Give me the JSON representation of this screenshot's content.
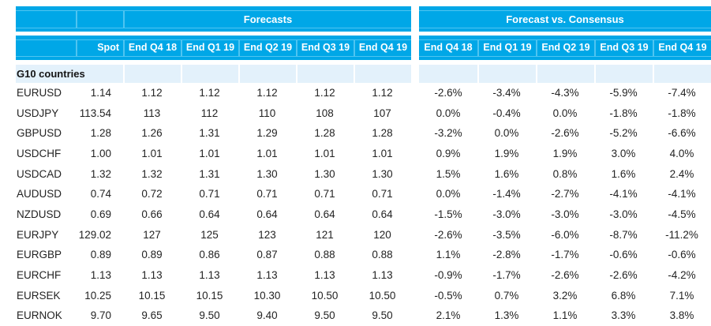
{
  "header": {
    "groups": [
      {
        "label": "Forecasts"
      },
      {
        "label": "Forecast vs. Consensus"
      }
    ],
    "spot_label": "Spot",
    "forecast_cols": [
      "End Q4 18",
      "End Q1 19",
      "End Q2 19",
      "End Q3 19",
      "End Q4 19"
    ],
    "consensus_cols": [
      "End Q4 18",
      "End Q1 19",
      "End Q2 19",
      "End Q3 19",
      "End Q4 19"
    ]
  },
  "section": {
    "label": "G10 countries"
  },
  "rows": [
    {
      "pair": "EURUSD",
      "spot": "1.14",
      "forecasts": [
        "1.12",
        "1.12",
        "1.12",
        "1.12",
        "1.12"
      ],
      "vs_consensus": [
        "-2.6%",
        "-3.4%",
        "-4.3%",
        "-5.9%",
        "-7.4%"
      ]
    },
    {
      "pair": "USDJPY",
      "spot": "113.54",
      "forecasts": [
        "113",
        "112",
        "110",
        "108",
        "107"
      ],
      "vs_consensus": [
        "0.0%",
        "-0.4%",
        "0.0%",
        "-1.8%",
        "-1.8%"
      ]
    },
    {
      "pair": "GBPUSD",
      "spot": "1.28",
      "forecasts": [
        "1.26",
        "1.31",
        "1.29",
        "1.28",
        "1.28"
      ],
      "vs_consensus": [
        "-3.2%",
        "0.0%",
        "-2.6%",
        "-5.2%",
        "-6.6%"
      ]
    },
    {
      "pair": "USDCHF",
      "spot": "1.00",
      "forecasts": [
        "1.01",
        "1.01",
        "1.01",
        "1.01",
        "1.01"
      ],
      "vs_consensus": [
        "0.9%",
        "1.9%",
        "1.9%",
        "3.0%",
        "4.0%"
      ]
    },
    {
      "pair": "USDCAD",
      "spot": "1.32",
      "forecasts": [
        "1.32",
        "1.31",
        "1.30",
        "1.30",
        "1.30"
      ],
      "vs_consensus": [
        "1.5%",
        "1.6%",
        "0.8%",
        "1.6%",
        "2.4%"
      ]
    },
    {
      "pair": "AUDUSD",
      "spot": "0.74",
      "forecasts": [
        "0.72",
        "0.71",
        "0.71",
        "0.71",
        "0.71"
      ],
      "vs_consensus": [
        "0.0%",
        "-1.4%",
        "-2.7%",
        "-4.1%",
        "-4.1%"
      ]
    },
    {
      "pair": "NZDUSD",
      "spot": "0.69",
      "forecasts": [
        "0.66",
        "0.64",
        "0.64",
        "0.64",
        "0.64"
      ],
      "vs_consensus": [
        "-1.5%",
        "-3.0%",
        "-3.0%",
        "-3.0%",
        "-4.5%"
      ]
    },
    {
      "pair": "EURJPY",
      "spot": "129.02",
      "forecasts": [
        "127",
        "125",
        "123",
        "121",
        "120"
      ],
      "vs_consensus": [
        "-2.6%",
        "-3.5%",
        "-6.0%",
        "-8.7%",
        "-11.2%"
      ]
    },
    {
      "pair": "EURGBP",
      "spot": "0.89",
      "forecasts": [
        "0.89",
        "0.86",
        "0.87",
        "0.88",
        "0.88"
      ],
      "vs_consensus": [
        "1.1%",
        "-2.8%",
        "-1.7%",
        "-0.6%",
        "-0.6%"
      ]
    },
    {
      "pair": "EURCHF",
      "spot": "1.13",
      "forecasts": [
        "1.13",
        "1.13",
        "1.13",
        "1.13",
        "1.13"
      ],
      "vs_consensus": [
        "-0.9%",
        "-1.7%",
        "-2.6%",
        "-2.6%",
        "-4.2%"
      ]
    },
    {
      "pair": "EURSEK",
      "spot": "10.25",
      "forecasts": [
        "10.15",
        "10.15",
        "10.30",
        "10.50",
        "10.50"
      ],
      "vs_consensus": [
        "-0.5%",
        "0.7%",
        "3.2%",
        "6.8%",
        "7.1%"
      ]
    },
    {
      "pair": "EURNOK",
      "spot": "9.70",
      "forecasts": [
        "9.65",
        "9.50",
        "9.40",
        "9.50",
        "9.50"
      ],
      "vs_consensus": [
        "2.1%",
        "1.3%",
        "1.1%",
        "3.3%",
        "3.8%"
      ]
    }
  ],
  "colors": {
    "header_bg": "#00A7E7",
    "header_gridline": "#4FC4F1",
    "header_text": "#FFFFFF",
    "section_bg": "#E3F1FB",
    "body_text": "#232323"
  }
}
